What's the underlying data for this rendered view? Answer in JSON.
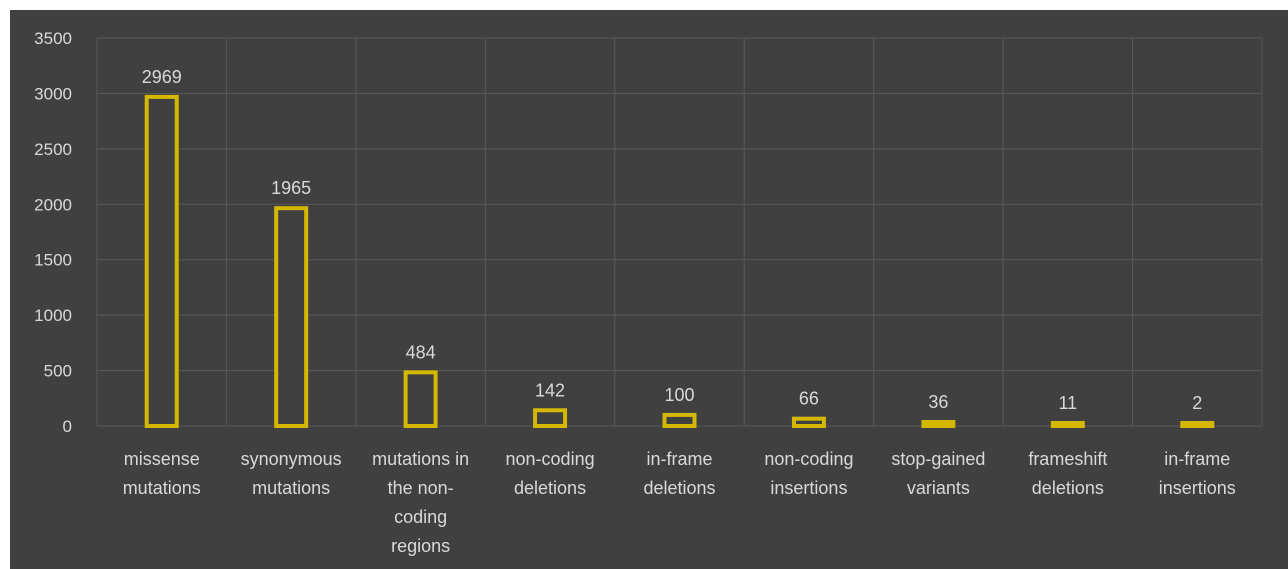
{
  "chart_data": {
    "type": "bar",
    "title": "",
    "xlabel": "",
    "ylabel": "",
    "ylim": [
      0,
      3500
    ],
    "yticks": [
      0,
      500,
      1000,
      1500,
      2000,
      2500,
      3000,
      3500
    ],
    "grid": true,
    "legend": "none",
    "categories": [
      [
        "missense",
        "mutations"
      ],
      [
        "synonymous",
        "mutations"
      ],
      [
        "mutations in",
        "the non-",
        "coding",
        "regions"
      ],
      [
        "non-coding",
        "deletions"
      ],
      [
        "in-frame",
        "deletions"
      ],
      [
        "non-coding",
        "insertions"
      ],
      [
        "stop-gained",
        "variants"
      ],
      [
        "frameshift",
        "deletions"
      ],
      [
        "in-frame",
        "insertions"
      ]
    ],
    "values": [
      2969,
      1965,
      484,
      142,
      100,
      66,
      36,
      11,
      2
    ],
    "colors": {
      "background": "#404040",
      "bar_outline": "#d4b800",
      "bar_fill": "#404040",
      "grid": "#595959",
      "text": "#d9d9d9"
    }
  }
}
